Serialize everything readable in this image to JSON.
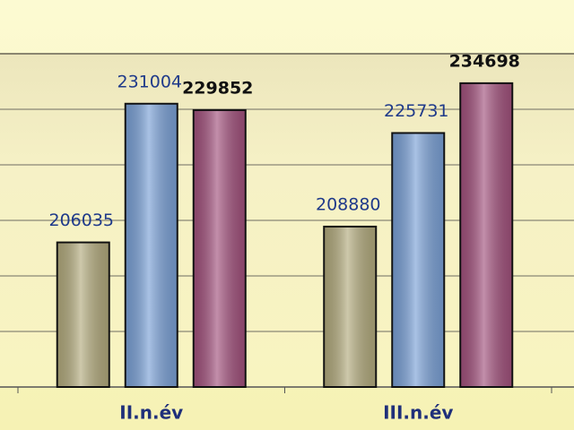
{
  "chart_data": {
    "type": "bar",
    "categories": [
      "II.n.év",
      "III.n.év"
    ],
    "series": [
      {
        "color": "#b3ab7e",
        "values": [
          206035,
          208880
        ]
      },
      {
        "color": "#7ba1d6",
        "values": [
          231004,
          225731
        ]
      },
      {
        "color": "#a2527d",
        "values": [
          229852,
          234698
        ]
      }
    ],
    "ylim": [
      180000,
      240000
    ],
    "yticks": [
      180000,
      190000,
      200000,
      210000,
      220000,
      230000,
      240000
    ],
    "grid": true
  }
}
